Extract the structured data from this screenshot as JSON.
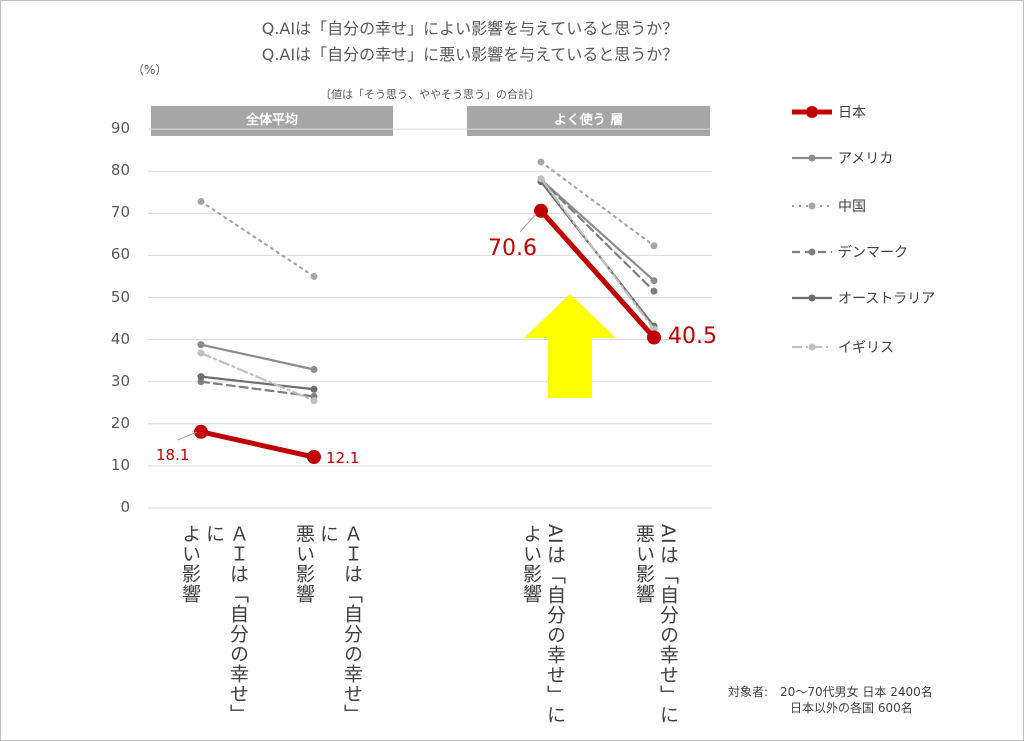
{
  "titles": {
    "line1": "Q.AIは「自分の幸せ」によい影響を与えていると思うか？",
    "line2": "Q.AIは「自分の幸せ」に悪い影響を与えていると思うか？",
    "unit": "（%）",
    "note": "〔値は「そう思う、ややそう思う」の合計〕"
  },
  "bands": {
    "left": "全体平均",
    "right": "よく使う 層"
  },
  "footnote": {
    "line1": "対象者:　20～70代男女  日本  2400名",
    "line2": "日本以外の各国  600名"
  },
  "chart_data": {
    "type": "line",
    "title": "Q.AIは「自分の幸せ」によい影響を与えていると思うか？ / Q.AIは「自分の幸せ」に悪い影響を与えていると思うか？",
    "ylabel": "（%）",
    "ylim": [
      0,
      90
    ],
    "yticks": [
      "0",
      "10",
      "20",
      "30",
      "40",
      "50",
      "60",
      "70",
      "80",
      "90"
    ],
    "groups": [
      "全体平均",
      "よく使う 層"
    ],
    "categories": [
      [
        "ＡＩは「自分の幸せ」に",
        "よい影響"
      ],
      [
        "ＡＩは「自分の幸せ」に",
        "悪い影響"
      ],
      [
        "AIは「自分の幸せ」に",
        "よい影響"
      ],
      [
        "AIは「自分の幸せ」に",
        "悪い影響"
      ]
    ],
    "series": [
      {
        "name": "日本",
        "color": "#c00000",
        "style": "solid-thick",
        "values": [
          18.1,
          12.1,
          70.6,
          40.5
        ]
      },
      {
        "name": "アメリカ",
        "color": "#8c8c8c",
        "style": "solid",
        "values": [
          38.8,
          32.9,
          78.0,
          54.0
        ]
      },
      {
        "name": "中国",
        "color": "#a6a6a6",
        "style": "dotted",
        "values": [
          72.8,
          55.0,
          82.2,
          62.3
        ]
      },
      {
        "name": "デンマーク",
        "color": "#7f7f7f",
        "style": "dashed",
        "values": [
          30.0,
          26.5,
          78.0,
          51.5
        ]
      },
      {
        "name": "オーストラリア",
        "color": "#6d6d6d",
        "style": "solid",
        "values": [
          31.2,
          28.2,
          77.5,
          43.2
        ]
      },
      {
        "name": "イギリス",
        "color": "#bfbfbf",
        "style": "dashdot",
        "values": [
          36.8,
          25.5,
          78.2,
          42.5
        ]
      }
    ],
    "data_labels": [
      "18.1",
      "12.1",
      "70.6",
      "40.5"
    ],
    "grid": true,
    "legend": "right"
  }
}
